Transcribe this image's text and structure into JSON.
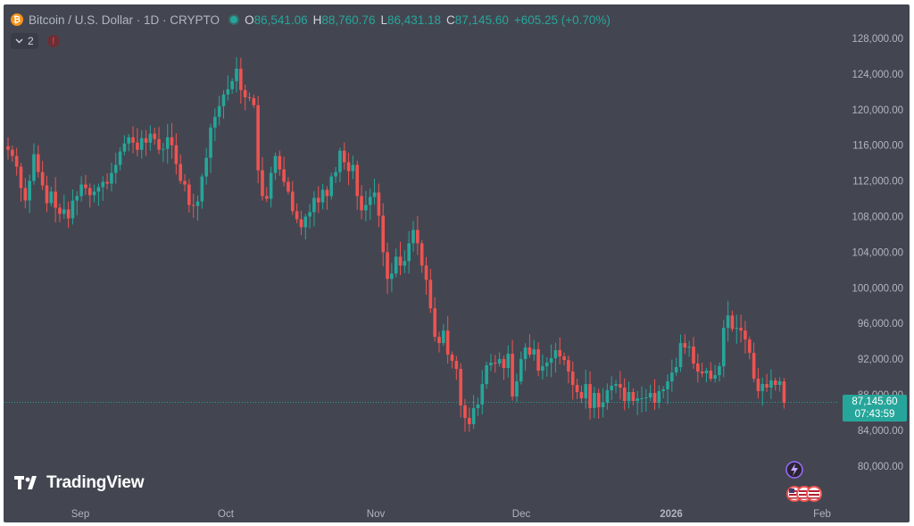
{
  "legend": {
    "coin_symbol": "₿",
    "title": "Bitcoin / U.S. Dollar · 1D · CRYPTO",
    "o_label": "O",
    "o_value": "86,541.06",
    "h_label": "H",
    "h_value": "88,760.76",
    "l_label": "L",
    "l_value": "86,431.18",
    "c_label": "C",
    "c_value": "87,145.60",
    "change": "+605.25 (+0.70%)"
  },
  "indicators": {
    "collapse_icon": "chevron-down-icon",
    "count": "2",
    "warning_icon": "!"
  },
  "price_tag": {
    "price": "87,145.60",
    "countdown": "07:43:59"
  },
  "logo": {
    "text": "TradingView"
  },
  "colors": {
    "background": "#434651",
    "up": "#26a69a",
    "down": "#ef5350",
    "axis_text": "#b2b5be"
  },
  "chart_data": {
    "type": "candlestick",
    "title": "Bitcoin / U.S. Dollar · 1D · CRYPTO",
    "y_ticks": [
      "128,000.00",
      "124,000.00",
      "120,000.00",
      "116,000.00",
      "112,000.00",
      "108,000.00",
      "104,000.00",
      "100,000.00",
      "96,000.00",
      "92,000.00",
      "88,000.00",
      "84,000.00",
      "80,000.00"
    ],
    "x_ticks": [
      "Sep",
      "Oct",
      "Nov",
      "Dec",
      "2026",
      "Feb"
    ],
    "ylim": [
      78000,
      130000
    ],
    "last_price": 87145.6,
    "closes": [
      115500,
      114800,
      113600,
      111200,
      109800,
      112000,
      115000,
      113000,
      111500,
      109500,
      110800,
      109000,
      108300,
      108800,
      107800,
      109800,
      110300,
      111600,
      111200,
      110400,
      110800,
      111300,
      111900,
      111700,
      112900,
      113800,
      115300,
      116200,
      116900,
      116300,
      115500,
      116800,
      116300,
      117300,
      116700,
      115500,
      115600,
      116900,
      116000,
      113900,
      112000,
      111600,
      109300,
      109200,
      109700,
      112500,
      114600,
      118000,
      119200,
      120400,
      121700,
      122300,
      123200,
      124600,
      122200,
      121400,
      121300,
      120500,
      113200,
      110300,
      110000,
      112900,
      114800,
      113300,
      111900,
      110800,
      108600,
      107700,
      106800,
      108000,
      108500,
      110100,
      109600,
      111000,
      110300,
      112500,
      113000,
      115400,
      114100,
      113100,
      113800,
      110300,
      108700,
      109300,
      110200,
      110700,
      108100,
      104000,
      101000,
      101600,
      103500,
      102500,
      103000,
      105000,
      106500,
      105000,
      102500,
      100900,
      97700,
      94500,
      93800,
      95200,
      92500,
      91800,
      90900,
      86800,
      85400,
      84700,
      86500,
      86900,
      89200,
      91300,
      91600,
      91500,
      92000,
      91000,
      92600,
      87800,
      89500,
      92000,
      93300,
      92500,
      93100,
      90700,
      91200,
      91600,
      92100,
      93000,
      92300,
      91900,
      90600,
      89100,
      88300,
      87600,
      89200,
      86500,
      88200,
      86600,
      87100,
      88500,
      89000,
      89200,
      88800,
      87300,
      88300,
      87300,
      87600,
      87600,
      87700,
      88200,
      87100,
      88400,
      88600,
      89500,
      90500,
      91100,
      93800,
      93300,
      93400,
      91500,
      90600,
      90400,
      90700,
      89800,
      90200,
      91200,
      95500,
      96900,
      95400,
      95500,
      95200,
      94200,
      92700,
      89800,
      88400,
      89200,
      88800,
      89600,
      89100,
      89500,
      87100
    ],
    "timeline_note": "daily candles, ~Aug 9 2025 to Jan 25 2026"
  }
}
